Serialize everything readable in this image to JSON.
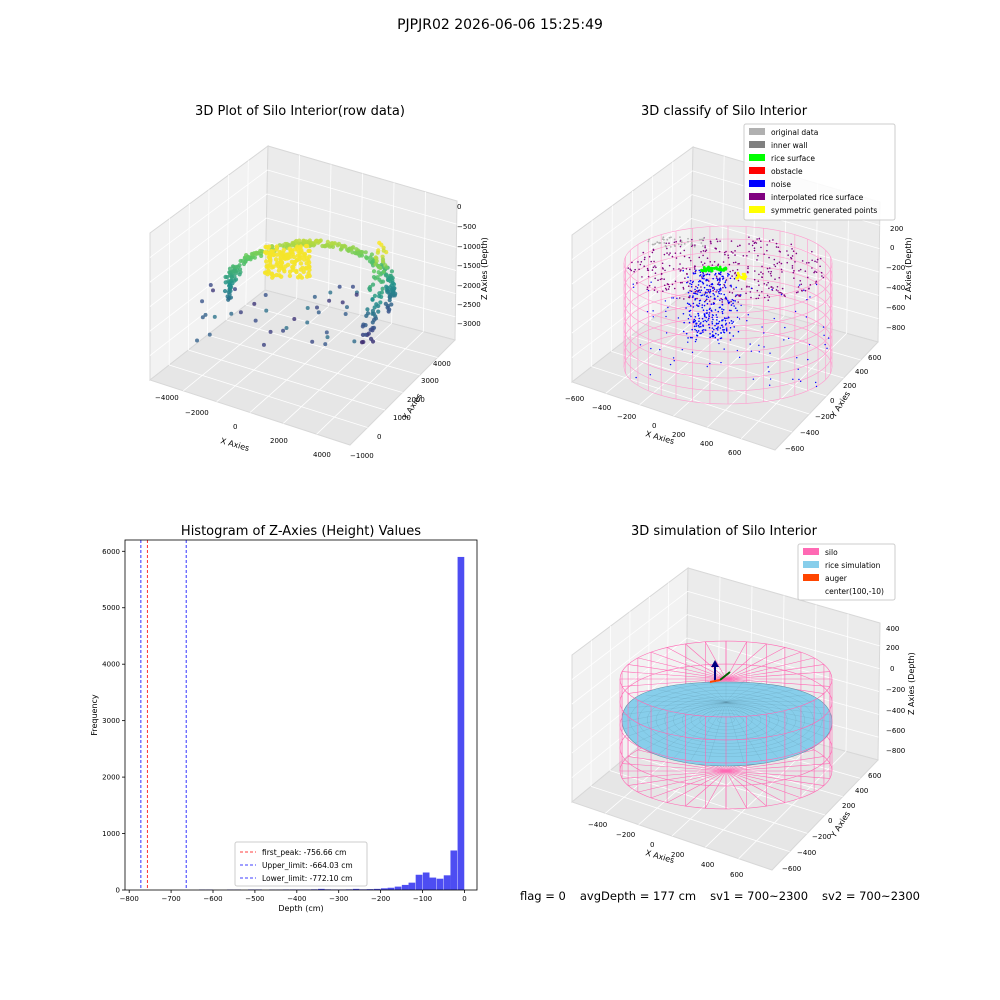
{
  "suptitle": "PJPJR02 2026-06-06 15:25:49",
  "status": {
    "flag": "flag = 0",
    "avg_depth": "avgDepth = 177 cm",
    "sv1": "sv1 = 700~2300",
    "sv2": "sv2 = 700~2300"
  },
  "panels": {
    "raw": {
      "title": "3D Plot of Silo Interior(row data)",
      "xlabel": "X Axies",
      "ylabel": "Y Axies",
      "zlabel": "Z Axies (Depth)",
      "xticks": [
        "−4000",
        "−2000",
        "0",
        "2000",
        "4000"
      ],
      "yticks": [
        "−1000",
        "0",
        "1000",
        "2000",
        "3000",
        "4000"
      ],
      "zticks": [
        "0",
        "−500",
        "−1000",
        "−1500",
        "−2000",
        "−2500",
        "−3000"
      ]
    },
    "classify": {
      "title": "3D classify of Silo Interior",
      "xlabel": "X Axies",
      "ylabel": "Y Axies",
      "zlabel": "Z Axies (Depth)",
      "xticks": [
        "−600",
        "−400",
        "−200",
        "0",
        "200",
        "400",
        "600"
      ],
      "yticks": [
        "−600",
        "−400",
        "−200",
        "0",
        "200",
        "400",
        "600"
      ],
      "zticks": [
        "200",
        "0",
        "−200",
        "−400",
        "−600",
        "−800"
      ],
      "legend": [
        {
          "label": "original data",
          "color": "#b0b0b0"
        },
        {
          "label": "inner wall",
          "color": "#808080"
        },
        {
          "label": "rice surface",
          "color": "#00ff00"
        },
        {
          "label": "obstacle",
          "color": "#ff0000"
        },
        {
          "label": "noise",
          "color": "#0000ff"
        },
        {
          "label": "interpolated rice surface",
          "color": "#800080"
        },
        {
          "label": "symmetric generated points",
          "color": "#ffff00"
        }
      ]
    },
    "simulation": {
      "title": "3D simulation of Silo Interior",
      "xlabel": "X Axies",
      "ylabel": "Y Axies",
      "zlabel": "Z Axies (Depth)",
      "xticks": [
        "−400",
        "−200",
        "0",
        "200",
        "400",
        "600"
      ],
      "yticks": [
        "−600",
        "−400",
        "−200",
        "0",
        "200",
        "400",
        "600"
      ],
      "zticks": [
        "400",
        "200",
        "0",
        "−200",
        "−400",
        "−600",
        "−800"
      ],
      "legend": [
        {
          "label": "silo",
          "color": "#ff69b4"
        },
        {
          "label": "rice simulation",
          "color": "#87ceeb"
        },
        {
          "label": "auger",
          "color": "#ff4500"
        },
        {
          "label": "center(100,-10)",
          "color": ""
        }
      ]
    }
  },
  "chart_data": [
    {
      "type": "scatter",
      "title": "3D Plot of Silo Interior(row data)",
      "xlabel": "X Axies",
      "ylabel": "Y Axies",
      "zlabel": "Z Axies (Depth)",
      "xlim": [
        -4000,
        4000
      ],
      "ylim": [
        -1000,
        4000
      ],
      "zlim": [
        -3300,
        0
      ]
    },
    {
      "type": "scatter",
      "title": "3D classify of Silo Interior",
      "xlabel": "X Axies",
      "ylabel": "Y Axies",
      "zlabel": "Z Axies (Depth)",
      "xlim": [
        -600,
        600
      ],
      "ylim": [
        -600,
        600
      ],
      "zlim": [
        -800,
        200
      ]
    },
    {
      "type": "bar",
      "title": "Histogram of Z-Axies (Height) Values",
      "xlabel": "Depth (cm)",
      "ylabel": "Frequency",
      "xlim": [
        -810,
        30
      ],
      "ylim": [
        0,
        6200
      ],
      "xticks": [
        -800,
        -700,
        -600,
        -500,
        -400,
        -300,
        -200,
        -100,
        0
      ],
      "yticks": [
        0,
        1000,
        2000,
        3000,
        4000,
        5000,
        6000
      ],
      "bar_color": "#4d4df2",
      "bins": [
        {
          "x": -625,
          "v": 8
        },
        {
          "x": -608,
          "v": 8
        },
        {
          "x": -558,
          "v": 8
        },
        {
          "x": -541,
          "v": 8
        },
        {
          "x": -508,
          "v": 10
        },
        {
          "x": -491,
          "v": 10
        },
        {
          "x": -458,
          "v": 8
        },
        {
          "x": -441,
          "v": 8
        },
        {
          "x": -425,
          "v": 10
        },
        {
          "x": -408,
          "v": 10
        },
        {
          "x": -391,
          "v": 10
        },
        {
          "x": -375,
          "v": 10
        },
        {
          "x": -358,
          "v": 12
        },
        {
          "x": -341,
          "v": 20
        },
        {
          "x": -325,
          "v": 12
        },
        {
          "x": -308,
          "v": 10
        },
        {
          "x": -291,
          "v": 10
        },
        {
          "x": -275,
          "v": 12
        },
        {
          "x": -258,
          "v": 20
        },
        {
          "x": -241,
          "v": 12
        },
        {
          "x": -225,
          "v": 15
        },
        {
          "x": -208,
          "v": 20
        },
        {
          "x": -191,
          "v": 30
        },
        {
          "x": -175,
          "v": 40
        },
        {
          "x": -158,
          "v": 60
        },
        {
          "x": -141,
          "v": 90
        },
        {
          "x": -125,
          "v": 130
        },
        {
          "x": -108,
          "v": 270
        },
        {
          "x": -91,
          "v": 310
        },
        {
          "x": -75,
          "v": 220
        },
        {
          "x": -58,
          "v": 200
        },
        {
          "x": -41,
          "v": 260
        },
        {
          "x": -25,
          "v": 700
        },
        {
          "x": -8,
          "v": 5900
        }
      ],
      "bin_width": 16.7,
      "vlines": [
        {
          "label": "first_peak: -756.66 cm",
          "x": -756.66,
          "color": "#ff0000"
        },
        {
          "label": "Upper_limit: -664.03 cm",
          "x": -664.03,
          "color": "#0000ff"
        },
        {
          "label": "Lower_limit: -772.10 cm",
          "x": -772.1,
          "color": "#0000ff"
        }
      ]
    },
    {
      "type": "scatter",
      "title": "3D simulation of Silo Interior",
      "xlabel": "X Axies",
      "ylabel": "Y Axies",
      "zlabel": "Z Axies (Depth)",
      "xlim": [
        -500,
        700
      ],
      "ylim": [
        -700,
        700
      ],
      "zlim": [
        -900,
        450
      ]
    }
  ]
}
